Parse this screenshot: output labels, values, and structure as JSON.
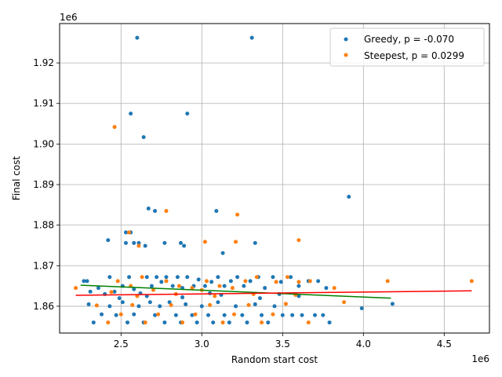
{
  "chart_data": {
    "type": "scatter",
    "title": "",
    "xlabel": "Random start cost",
    "ylabel": "Final cost",
    "x_offset_label": "1e6",
    "y_offset_label": "1e6",
    "xlim": [
      2.12,
      4.78
    ],
    "ylim": [
      1.8534,
      1.9297
    ],
    "x_ticks": [
      2.5,
      3.0,
      3.5,
      4.0,
      4.5
    ],
    "x_tick_labels": [
      "2.5",
      "3.0",
      "3.5",
      "4.0",
      "4.5"
    ],
    "y_ticks": [
      1.86,
      1.87,
      1.88,
      1.89,
      1.9,
      1.91,
      1.92
    ],
    "y_tick_labels": [
      "1.86",
      "1.87",
      "1.88",
      "1.89",
      "1.90",
      "1.91",
      "1.92"
    ],
    "grid": true,
    "legend_position": "top-right",
    "series": [
      {
        "name": "Greedy, p = -0.070",
        "color": "#1f77b4",
        "fit_line": {
          "color": "#008000",
          "x": [
            2.25,
            4.17
          ],
          "y": [
            1.8652,
            1.862
          ]
        },
        "points": [
          [
            2.6,
            1.9262
          ],
          [
            3.31,
            1.9262
          ],
          [
            2.56,
            1.9075
          ],
          [
            2.91,
            1.9075
          ],
          [
            2.64,
            1.9017
          ],
          [
            3.91,
            1.887
          ],
          [
            2.67,
            1.8841
          ],
          [
            2.71,
            1.8835
          ],
          [
            3.09,
            1.8835
          ],
          [
            2.42,
            1.8763
          ],
          [
            2.53,
            1.8782
          ],
          [
            2.56,
            1.8782
          ],
          [
            2.58,
            1.8756
          ],
          [
            2.61,
            1.8756
          ],
          [
            2.53,
            1.8756
          ],
          [
            2.77,
            1.8756
          ],
          [
            2.87,
            1.8756
          ],
          [
            3.33,
            1.8756
          ],
          [
            2.65,
            1.8749
          ],
          [
            2.89,
            1.8749
          ],
          [
            3.13,
            1.8731
          ],
          [
            2.27,
            1.8662
          ],
          [
            2.29,
            1.8662
          ],
          [
            2.31,
            1.8636
          ],
          [
            2.36,
            1.8645
          ],
          [
            2.43,
            1.8672
          ],
          [
            2.46,
            1.8636
          ],
          [
            2.51,
            1.865
          ],
          [
            2.55,
            1.8672
          ],
          [
            2.58,
            1.8642
          ],
          [
            2.62,
            1.8632
          ],
          [
            2.66,
            1.8672
          ],
          [
            2.69,
            1.865
          ],
          [
            2.72,
            1.8672
          ],
          [
            2.75,
            1.866
          ],
          [
            2.78,
            1.8672
          ],
          [
            2.82,
            1.865
          ],
          [
            2.85,
            1.8672
          ],
          [
            2.88,
            1.8645
          ],
          [
            2.91,
            1.8672
          ],
          [
            2.95,
            1.865
          ],
          [
            2.98,
            1.8666
          ],
          [
            3.02,
            1.865
          ],
          [
            3.06,
            1.866
          ],
          [
            3.1,
            1.8672
          ],
          [
            3.14,
            1.865
          ],
          [
            3.18,
            1.8662
          ],
          [
            3.22,
            1.8672
          ],
          [
            3.26,
            1.865
          ],
          [
            3.3,
            1.8662
          ],
          [
            3.35,
            1.8672
          ],
          [
            3.39,
            1.8645
          ],
          [
            3.44,
            1.8672
          ],
          [
            3.49,
            1.866
          ],
          [
            3.55,
            1.8672
          ],
          [
            3.6,
            1.865
          ],
          [
            3.66,
            1.8662
          ],
          [
            3.72,
            1.8662
          ],
          [
            3.77,
            1.8645
          ],
          [
            2.3,
            1.8605
          ],
          [
            2.33,
            1.856
          ],
          [
            2.38,
            1.858
          ],
          [
            2.43,
            1.86
          ],
          [
            2.47,
            1.8578
          ],
          [
            2.51,
            1.861
          ],
          [
            2.54,
            1.856
          ],
          [
            2.58,
            1.858
          ],
          [
            2.61,
            1.86
          ],
          [
            2.64,
            1.856
          ],
          [
            2.68,
            1.861
          ],
          [
            2.71,
            1.8578
          ],
          [
            2.74,
            1.86
          ],
          [
            2.77,
            1.856
          ],
          [
            2.8,
            1.861
          ],
          [
            2.84,
            1.8578
          ],
          [
            2.87,
            1.856
          ],
          [
            2.9,
            1.8605
          ],
          [
            2.94,
            1.8578
          ],
          [
            2.97,
            1.856
          ],
          [
            3.0,
            1.86
          ],
          [
            3.04,
            1.8578
          ],
          [
            3.07,
            1.856
          ],
          [
            3.1,
            1.861
          ],
          [
            3.14,
            1.8578
          ],
          [
            3.17,
            1.856
          ],
          [
            3.21,
            1.86
          ],
          [
            3.25,
            1.8578
          ],
          [
            3.28,
            1.856
          ],
          [
            3.33,
            1.8605
          ],
          [
            3.37,
            1.8578
          ],
          [
            3.41,
            1.856
          ],
          [
            3.45,
            1.86
          ],
          [
            3.5,
            1.8578
          ],
          [
            3.56,
            1.8578
          ],
          [
            3.62,
            1.8578
          ],
          [
            3.7,
            1.8578
          ],
          [
            3.75,
            1.8578
          ],
          [
            3.79,
            1.856
          ],
          [
            3.99,
            1.8595
          ],
          [
            4.18,
            1.8606
          ],
          [
            2.49,
            1.862
          ],
          [
            2.66,
            1.8625
          ],
          [
            2.88,
            1.8622
          ],
          [
            3.12,
            1.8628
          ],
          [
            3.36,
            1.862
          ],
          [
            3.6,
            1.8625
          ],
          [
            2.4,
            1.863
          ],
          [
            3.05,
            1.8632
          ],
          [
            3.48,
            1.863
          ]
        ]
      },
      {
        "name": "Steepest, p = 0.0299",
        "color": "#ff7f0e",
        "fit_line": {
          "color": "#ff0000",
          "x": [
            2.22,
            4.67
          ],
          "y": [
            1.8627
          ],
          "y_end": 1.8638
        },
        "points": [
          [
            2.46,
            1.9042
          ],
          [
            2.78,
            1.8835
          ],
          [
            3.22,
            1.8826
          ],
          [
            2.55,
            1.8782
          ],
          [
            3.02,
            1.8759
          ],
          [
            3.21,
            1.8759
          ],
          [
            3.6,
            1.8763
          ],
          [
            2.61,
            1.8749
          ],
          [
            2.22,
            1.8645
          ],
          [
            2.48,
            1.8662
          ],
          [
            2.56,
            1.865
          ],
          [
            2.63,
            1.8672
          ],
          [
            2.7,
            1.864
          ],
          [
            2.78,
            1.8662
          ],
          [
            2.86,
            1.865
          ],
          [
            2.94,
            1.8645
          ],
          [
            3.03,
            1.8662
          ],
          [
            3.11,
            1.865
          ],
          [
            3.19,
            1.8645
          ],
          [
            3.27,
            1.8662
          ],
          [
            3.34,
            1.8672
          ],
          [
            3.46,
            1.866
          ],
          [
            3.53,
            1.8672
          ],
          [
            3.6,
            1.866
          ],
          [
            3.67,
            1.8662
          ],
          [
            3.82,
            1.8645
          ],
          [
            4.15,
            1.8662
          ],
          [
            4.67,
            1.8662
          ],
          [
            2.35,
            1.8602
          ],
          [
            2.42,
            1.856
          ],
          [
            2.5,
            1.858
          ],
          [
            2.57,
            1.8603
          ],
          [
            2.65,
            1.856
          ],
          [
            2.73,
            1.858
          ],
          [
            2.81,
            1.8603
          ],
          [
            2.88,
            1.856
          ],
          [
            2.96,
            1.858
          ],
          [
            3.05,
            1.8603
          ],
          [
            3.13,
            1.856
          ],
          [
            3.2,
            1.858
          ],
          [
            3.29,
            1.8603
          ],
          [
            3.37,
            1.856
          ],
          [
            3.44,
            1.858
          ],
          [
            3.52,
            1.8606
          ],
          [
            3.66,
            1.856
          ],
          [
            3.88,
            1.861
          ],
          [
            2.6,
            1.8625
          ],
          [
            2.84,
            1.863
          ],
          [
            3.08,
            1.8625
          ],
          [
            3.32,
            1.863
          ],
          [
            3.58,
            1.8628
          ],
          [
            2.44,
            1.8635
          ],
          [
            3.0,
            1.864
          ]
        ]
      }
    ]
  }
}
